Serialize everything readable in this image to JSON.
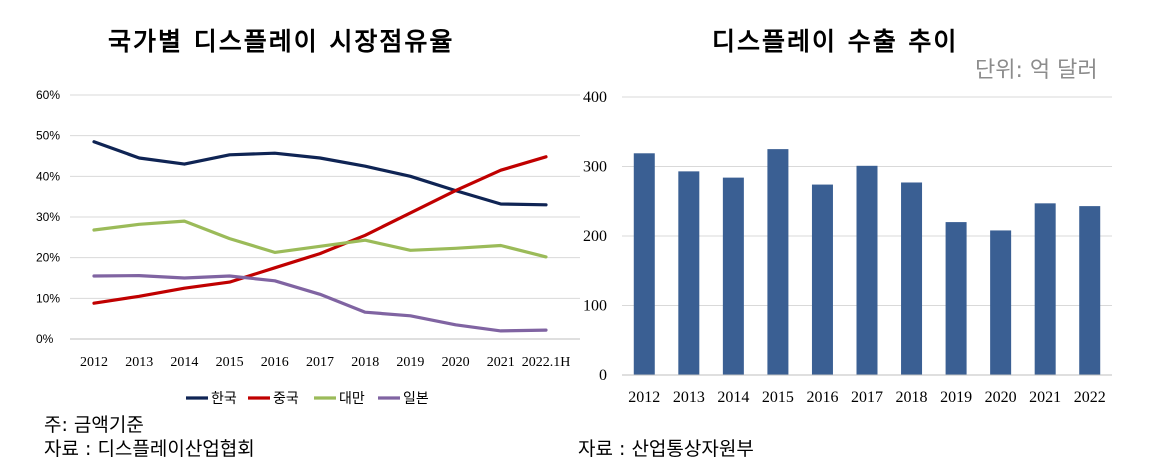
{
  "titles": {
    "left": "국가별 디스플레이 시장점유율",
    "right": "디스플레이 수출 추이",
    "unit": "단위: 억 달러"
  },
  "notes": {
    "left_note": "주: 금액기준",
    "left_source": "자료 : 디스플레이산업협회",
    "right_source": "자료 : 산업통상자원부"
  },
  "chart_data": [
    {
      "type": "line",
      "title": "국가별 디스플레이 시장점유율",
      "categories": [
        "2012",
        "2013",
        "2014",
        "2015",
        "2016",
        "2017",
        "2018",
        "2019",
        "2020",
        "2021",
        "2022.1H"
      ],
      "y_ticks": [
        "0%",
        "10%",
        "20%",
        "30%",
        "40%",
        "50%",
        "60%"
      ],
      "ylim": [
        0,
        60
      ],
      "grid": true,
      "legend": "bottom",
      "series": [
        {
          "name": "한국",
          "color": "#0f2454",
          "values": [
            48.5,
            44.5,
            43,
            45.3,
            45.7,
            44.5,
            42.5,
            40,
            36.5,
            33.2,
            33
          ]
        },
        {
          "name": "중국",
          "color": "#c00000",
          "values": [
            8.8,
            10.5,
            12.5,
            14,
            17.5,
            21,
            25.5,
            31,
            36.5,
            41.5,
            44.8
          ]
        },
        {
          "name": "대만",
          "color": "#9bbb59",
          "values": [
            26.8,
            28.2,
            29,
            24.7,
            21.3,
            22.8,
            24.3,
            21.8,
            22.3,
            23,
            20.2
          ]
        },
        {
          "name": "일본",
          "color": "#8064a2",
          "values": [
            15.5,
            15.6,
            15,
            15.5,
            14.3,
            11,
            6.6,
            5.7,
            3.5,
            2,
            2.2
          ]
        }
      ]
    },
    {
      "type": "bar",
      "title": "디스플레이 수출 추이",
      "categories": [
        "2012",
        "2013",
        "2014",
        "2015",
        "2016",
        "2017",
        "2018",
        "2019",
        "2020",
        "2021",
        "2022"
      ],
      "values": [
        319,
        293,
        284,
        325,
        274,
        301,
        277,
        220,
        208,
        247,
        243
      ],
      "y_ticks": [
        "0",
        "100",
        "200",
        "300",
        "400"
      ],
      "ylim": [
        0,
        400
      ],
      "grid": true,
      "color": "#3a5f93"
    }
  ]
}
